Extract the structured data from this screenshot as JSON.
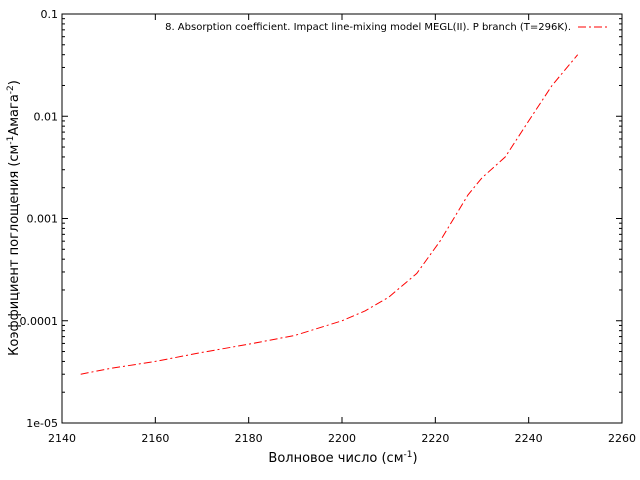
{
  "chart_data": {
    "type": "line",
    "x_axis": {
      "label": "Волновое число (см",
      "label_sup": "-1",
      "label_end": ")",
      "range": [
        2140,
        2260
      ],
      "ticks": [
        2140,
        2160,
        2180,
        2200,
        2220,
        2240,
        2260
      ],
      "tick_labels": [
        "2140",
        "2160",
        "2180",
        "2200",
        "2220",
        "2240",
        "2260"
      ]
    },
    "y_axis": {
      "label": "Коэффициент поглощения (см",
      "label_sup1": "-1",
      "label_mid": "Амага",
      "label_sup2": "-2",
      "label_end": ")",
      "scale": "log",
      "range": [
        1e-05,
        0.1
      ],
      "ticks": [
        1e-05,
        0.0001,
        0.001,
        0.01,
        0.1
      ],
      "tick_labels": [
        "1e-05",
        "0.0001",
        "0.001",
        "0.01",
        "0.1"
      ]
    },
    "grid": false,
    "legend_position": "top-right",
    "series": [
      {
        "name": "8. Absorption coefficient. Impact line-mixing model MEGL(II). P branch (T=296K).",
        "color": "#ff0000",
        "line_style": "dash-dot",
        "x": [
          2144,
          2150,
          2160,
          2170,
          2180,
          2190,
          2200,
          2205,
          2210,
          2216,
          2221,
          2227,
          2230,
          2235,
          2240,
          2245,
          2250.5
        ],
        "y": [
          3e-05,
          3.4e-05,
          4e-05,
          4.9e-05,
          5.9e-05,
          7.2e-05,
          0.0001,
          0.000125,
          0.00017,
          0.00029,
          0.0006,
          0.0017,
          0.0025,
          0.004,
          0.009,
          0.02,
          0.04
        ]
      }
    ]
  }
}
